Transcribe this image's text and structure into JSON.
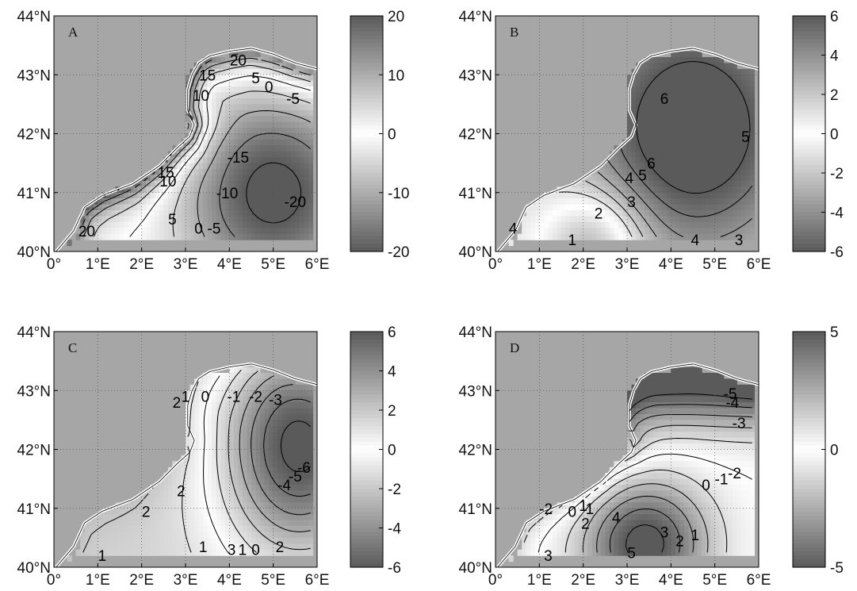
{
  "figure": {
    "panel_count": 4
  },
  "chart_data": [
    {
      "type": "heatmap",
      "panel_label": "A",
      "x_ticks": [
        "0°",
        "1°E",
        "2°E",
        "3°E",
        "4°E",
        "5°E",
        "6°E"
      ],
      "y_ticks": [
        "40°N",
        "41°N",
        "42°N",
        "43°N",
        "44°N"
      ],
      "xlim": [
        0,
        6
      ],
      "ylim": [
        40,
        44
      ],
      "grid": true,
      "colorbar": {
        "min": -20,
        "max": 20,
        "ticks": [
          "20",
          "10",
          "0",
          "-10",
          "-20"
        ]
      },
      "contour_labels": [
        "20",
        "5",
        "0",
        "-5",
        "15",
        "10",
        "-15",
        "15",
        "10",
        "-10",
        "-20",
        "5",
        "0",
        "-5",
        "20"
      ],
      "contour_label_values": [
        20,
        5,
        0,
        -5,
        15,
        10,
        -15,
        15,
        10,
        -10,
        -20,
        5,
        0,
        -5,
        20
      ],
      "field": {
        "center": [
          5.0,
          41.0
        ],
        "center_value": -22,
        "coast_value": 22,
        "sharpness": 1.0
      }
    },
    {
      "type": "heatmap",
      "panel_label": "B",
      "x_ticks": [
        "0°",
        "1°E",
        "2°E",
        "3°E",
        "4°E",
        "5°E",
        "6°E"
      ],
      "y_ticks": [
        "40°N",
        "41°N",
        "42°N",
        "43°N",
        "44°N"
      ],
      "xlim": [
        0,
        6
      ],
      "ylim": [
        40,
        44
      ],
      "grid": true,
      "colorbar": {
        "min": -6,
        "max": 6,
        "ticks": [
          "6",
          "4",
          "2",
          "0",
          "-2",
          "-4",
          "-6"
        ]
      },
      "contour_labels": [
        "6",
        "5",
        "6",
        "4",
        "5",
        "3",
        "2",
        "1",
        "4",
        "3",
        "4"
      ],
      "contour_label_values": [
        6,
        5,
        6,
        4,
        5,
        3,
        2,
        1,
        4,
        3,
        4
      ],
      "field": {
        "center": [
          4.5,
          42.1
        ],
        "center_value": 6.5,
        "low_point": [
          2.2,
          40.1
        ],
        "low_value": 0.5
      }
    },
    {
      "type": "heatmap",
      "panel_label": "C",
      "x_ticks": [
        "0°",
        "1°E",
        "2°E",
        "3°E",
        "4°E",
        "5°E",
        "6°E"
      ],
      "y_ticks": [
        "40°N",
        "41°N",
        "42°N",
        "43°N",
        "44°N"
      ],
      "xlim": [
        0,
        6
      ],
      "ylim": [
        40,
        44
      ],
      "grid": true,
      "colorbar": {
        "min": -6,
        "max": 6,
        "ticks": [
          "6",
          "4",
          "2",
          "0",
          "-2",
          "-4",
          "-6"
        ]
      },
      "contour_labels": [
        "2",
        "1",
        "0",
        "-1",
        "-2",
        "-3",
        "-6",
        "-5",
        "-4",
        "2",
        "2",
        "1",
        "3",
        "1",
        "0",
        "1",
        "2"
      ],
      "contour_label_values": [
        2,
        1,
        0,
        -1,
        -2,
        -3,
        -6,
        -5,
        -4,
        2,
        2,
        1,
        3,
        1,
        0,
        1,
        2
      ],
      "field": {
        "center": [
          5.6,
          42.1
        ],
        "center_value": -6.5,
        "shelf_value": 1.5
      }
    },
    {
      "type": "heatmap",
      "panel_label": "D",
      "x_ticks": [
        "0°",
        "1°E",
        "2°E",
        "3°E",
        "4°E",
        "5°E",
        "6°E"
      ],
      "y_ticks": [
        "40°N",
        "41°N",
        "42°N",
        "43°N",
        "44°N"
      ],
      "xlim": [
        0,
        6
      ],
      "ylim": [
        40,
        44
      ],
      "grid": true,
      "colorbar": {
        "min": -5,
        "max": 5,
        "ticks": [
          "5",
          "0",
          "-5"
        ]
      },
      "contour_labels": [
        "-5",
        "-4",
        "-3",
        "0",
        "-1",
        "-2",
        "-2",
        "0",
        "1",
        "1",
        "2",
        "4",
        "3",
        "2",
        "1",
        "5",
        "3"
      ],
      "contour_label_values": [
        -5,
        -4,
        -3,
        0,
        -1,
        -2,
        -2,
        0,
        1,
        1,
        2,
        4,
        3,
        2,
        1,
        5,
        3
      ],
      "field": {
        "north_value": -5.5,
        "south_center": [
          3.4,
          40.4
        ],
        "south_value": 5.5
      }
    }
  ]
}
